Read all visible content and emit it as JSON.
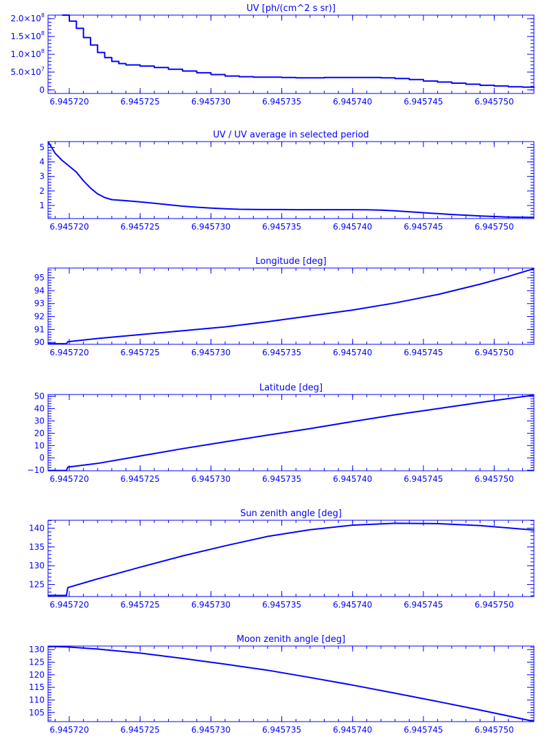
{
  "color": "#0000ff",
  "chart_data": [
    {
      "type": "line",
      "title": "UV [ph/(cm^2 s sr)]",
      "xlabel": "",
      "ylabel": "",
      "xlim": [
        6.9457185,
        6.9457528
      ],
      "ylim": [
        -10000000,
        210000000
      ],
      "xticks": [
        6.94572,
        6.945725,
        6.94573,
        6.945735,
        6.94574,
        6.945745,
        6.94575
      ],
      "xtick_labels": [
        "6.945720",
        "6.945725",
        "6.945730",
        "6.945735",
        "6.945740",
        "6.945745",
        "6.945750"
      ],
      "yticks": [
        0,
        50000000,
        100000000,
        150000000,
        200000000
      ],
      "ytick_labels": [
        {
          "mant": "0",
          "exp": ""
        },
        {
          "mant": "5.0×10",
          "exp": "7"
        },
        {
          "mant": "1.0×10",
          "exp": "8"
        },
        {
          "mant": "1.5×10",
          "exp": "8"
        },
        {
          "mant": "2.0×10",
          "exp": "8"
        }
      ],
      "step": true,
      "x": [
        6.9457195,
        6.94572,
        6.9457205,
        6.945721,
        6.9457215,
        6.945722,
        6.9457225,
        6.945723,
        6.9457235,
        6.945724,
        6.945725,
        6.945726,
        6.945727,
        6.945728,
        6.945729,
        6.94573,
        6.945731,
        6.945732,
        6.945733,
        6.945734,
        6.945735,
        6.945736,
        6.945737,
        6.945738,
        6.945739,
        6.94574,
        6.945741,
        6.945742,
        6.945743,
        6.945744,
        6.945745,
        6.945746,
        6.945747,
        6.945748,
        6.945749,
        6.94575,
        6.945751,
        6.945752,
        6.9457528
      ],
      "y": [
        210000000,
        193000000,
        173000000,
        147000000,
        126000000,
        105000000,
        91000000,
        80000000,
        74000000,
        70000000,
        67000000,
        63000000,
        58000000,
        53000000,
        48000000,
        43000000,
        39000000,
        37000000,
        36000000,
        36000000,
        35000000,
        34000000,
        34000000,
        35000000,
        35000000,
        35000000,
        35000000,
        34000000,
        32000000,
        29000000,
        25000000,
        22000000,
        19000000,
        16000000,
        13000000,
        11000000,
        9000000,
        8000000,
        6000000
      ]
    },
    {
      "type": "line",
      "title": "UV / UV average in selected period",
      "xlabel": "",
      "ylabel": "",
      "xlim": [
        6.9457185,
        6.9457528
      ],
      "ylim": [
        0.1,
        5.4
      ],
      "xticks": [
        6.94572,
        6.945725,
        6.94573,
        6.945735,
        6.94574,
        6.945745,
        6.94575
      ],
      "xtick_labels": [
        "6.945720",
        "6.945725",
        "6.945730",
        "6.945735",
        "6.945740",
        "6.945745",
        "6.945750"
      ],
      "yticks": [
        1,
        2,
        3,
        4,
        5
      ],
      "ytick_labels": [
        {
          "mant": "1",
          "exp": ""
        },
        {
          "mant": "2",
          "exp": ""
        },
        {
          "mant": "3",
          "exp": ""
        },
        {
          "mant": "4",
          "exp": ""
        },
        {
          "mant": "5",
          "exp": ""
        }
      ],
      "step": false,
      "x": [
        6.9457185,
        6.945719,
        6.9457195,
        6.94572,
        6.9457205,
        6.945721,
        6.9457215,
        6.945722,
        6.9457225,
        6.945723,
        6.945724,
        6.945725,
        6.945726,
        6.945727,
        6.945728,
        6.945729,
        6.94573,
        6.945731,
        6.945732,
        6.945733,
        6.945734,
        6.945735,
        6.945736,
        6.945737,
        6.945738,
        6.945739,
        6.94574,
        6.945741,
        6.945742,
        6.945743,
        6.945744,
        6.945745,
        6.945746,
        6.945747,
        6.945748,
        6.945749,
        6.94575,
        6.945751,
        6.945752,
        6.9457528
      ],
      "y": [
        5.4,
        4.6,
        4.1,
        3.7,
        3.3,
        2.7,
        2.2,
        1.8,
        1.55,
        1.4,
        1.33,
        1.25,
        1.15,
        1.05,
        0.95,
        0.88,
        0.82,
        0.77,
        0.74,
        0.73,
        0.72,
        0.72,
        0.71,
        0.71,
        0.71,
        0.71,
        0.71,
        0.7,
        0.68,
        0.63,
        0.57,
        0.5,
        0.44,
        0.38,
        0.33,
        0.28,
        0.24,
        0.2,
        0.19,
        0.18
      ]
    },
    {
      "type": "line",
      "title": "Longitude [deg]",
      "xlabel": "",
      "ylabel": "",
      "xlim": [
        6.9457185,
        6.9457528
      ],
      "ylim": [
        89.85,
        95.75
      ],
      "xticks": [
        6.94572,
        6.945725,
        6.94573,
        6.945735,
        6.94574,
        6.945745,
        6.94575
      ],
      "xtick_labels": [
        "6.945720",
        "6.945725",
        "6.945730",
        "6.945735",
        "6.945740",
        "6.945745",
        "6.945750"
      ],
      "yticks": [
        90,
        91,
        92,
        93,
        94,
        95
      ],
      "ytick_labels": [
        {
          "mant": "90",
          "exp": ""
        },
        {
          "mant": "91",
          "exp": ""
        },
        {
          "mant": "92",
          "exp": ""
        },
        {
          "mant": "93",
          "exp": ""
        },
        {
          "mant": "94",
          "exp": ""
        },
        {
          "mant": "95",
          "exp": ""
        }
      ],
      "step": false,
      "x": [
        6.9457185,
        6.9457198,
        6.9457199,
        6.945722,
        6.945725,
        6.945728,
        6.945731,
        6.945734,
        6.945737,
        6.94574,
        6.945743,
        6.945746,
        6.945749,
        6.945751,
        6.9457528
      ],
      "y": [
        89.9,
        89.9,
        90.05,
        90.3,
        90.6,
        90.9,
        91.2,
        91.6,
        92.05,
        92.5,
        93.05,
        93.7,
        94.5,
        95.1,
        95.7
      ]
    },
    {
      "type": "line",
      "title": "Latitude [deg]",
      "xlabel": "",
      "ylabel": "",
      "xlim": [
        6.9457185,
        6.9457528
      ],
      "ylim": [
        -10.5,
        51.5
      ],
      "xticks": [
        6.94572,
        6.945725,
        6.94573,
        6.945735,
        6.94574,
        6.945745,
        6.94575
      ],
      "xtick_labels": [
        "6.945720",
        "6.945725",
        "6.945730",
        "6.945735",
        "6.945740",
        "6.945745",
        "6.945750"
      ],
      "yticks": [
        -10,
        0,
        10,
        20,
        30,
        40,
        50
      ],
      "ytick_labels": [
        {
          "mant": "−10",
          "exp": ""
        },
        {
          "mant": "0",
          "exp": ""
        },
        {
          "mant": "10",
          "exp": ""
        },
        {
          "mant": "20",
          "exp": ""
        },
        {
          "mant": "30",
          "exp": ""
        },
        {
          "mant": "40",
          "exp": ""
        },
        {
          "mant": "50",
          "exp": ""
        }
      ],
      "step": false,
      "x": [
        6.9457185,
        6.9457198,
        6.9457199,
        6.945722,
        6.945725,
        6.945728,
        6.945731,
        6.945734,
        6.945737,
        6.94574,
        6.945743,
        6.945746,
        6.945749,
        6.9457528
      ],
      "y": [
        -10.3,
        -10.3,
        -7.5,
        -4.5,
        1.5,
        7.5,
        13,
        18.5,
        23.8,
        29.5,
        35,
        40,
        45,
        51
      ]
    },
    {
      "type": "line",
      "title": "Sun zenith angle [deg]",
      "xlabel": "",
      "ylabel": "",
      "xlim": [
        6.9457185,
        6.9457528
      ],
      "ylim": [
        121.8,
        142.1
      ],
      "xticks": [
        6.94572,
        6.945725,
        6.94573,
        6.945735,
        6.94574,
        6.945745,
        6.94575
      ],
      "xtick_labels": [
        "6.945720",
        "6.945725",
        "6.945730",
        "6.945735",
        "6.945740",
        "6.945745",
        "6.945750"
      ],
      "yticks": [
        125,
        130,
        135,
        140
      ],
      "ytick_labels": [
        {
          "mant": "125",
          "exp": ""
        },
        {
          "mant": "130",
          "exp": ""
        },
        {
          "mant": "135",
          "exp": ""
        },
        {
          "mant": "140",
          "exp": ""
        }
      ],
      "step": false,
      "x": [
        6.9457185,
        6.9457198,
        6.9457199,
        6.945722,
        6.945725,
        6.945728,
        6.945731,
        6.945734,
        6.945737,
        6.94574,
        6.945743,
        6.945746,
        6.945749,
        6.9457528
      ],
      "y": [
        122.1,
        122.1,
        124.2,
        126.5,
        129.6,
        132.6,
        135.3,
        137.8,
        139.6,
        140.8,
        141.3,
        141.2,
        140.7,
        139.5
      ]
    },
    {
      "type": "line",
      "title": "Moon zenith angle [deg]",
      "xlabel": "",
      "ylabel": "",
      "xlim": [
        6.9457185,
        6.9457528
      ],
      "ylim": [
        101.4,
        131.4
      ],
      "xticks": [
        6.94572,
        6.945725,
        6.94573,
        6.945735,
        6.94574,
        6.945745,
        6.94575
      ],
      "xtick_labels": [
        "6.945720",
        "6.945725",
        "6.945730",
        "6.945735",
        "6.945740",
        "6.945745",
        "6.945750"
      ],
      "yticks": [
        105,
        110,
        115,
        120,
        125,
        130
      ],
      "ytick_labels": [
        {
          "mant": "105",
          "exp": ""
        },
        {
          "mant": "110",
          "exp": ""
        },
        {
          "mant": "115",
          "exp": ""
        },
        {
          "mant": "120",
          "exp": ""
        },
        {
          "mant": "125",
          "exp": ""
        },
        {
          "mant": "130",
          "exp": ""
        }
      ],
      "step": false,
      "x": [
        6.9457185,
        6.945719,
        6.94572,
        6.945722,
        6.945725,
        6.945728,
        6.945731,
        6.945734,
        6.945737,
        6.94574,
        6.945743,
        6.945746,
        6.945749,
        6.9457528
      ],
      "y": [
        131.2,
        131.2,
        131,
        130.2,
        128.6,
        126.5,
        124.2,
        121.8,
        118.9,
        115.9,
        112.7,
        109.4,
        106,
        101.5
      ]
    }
  ]
}
